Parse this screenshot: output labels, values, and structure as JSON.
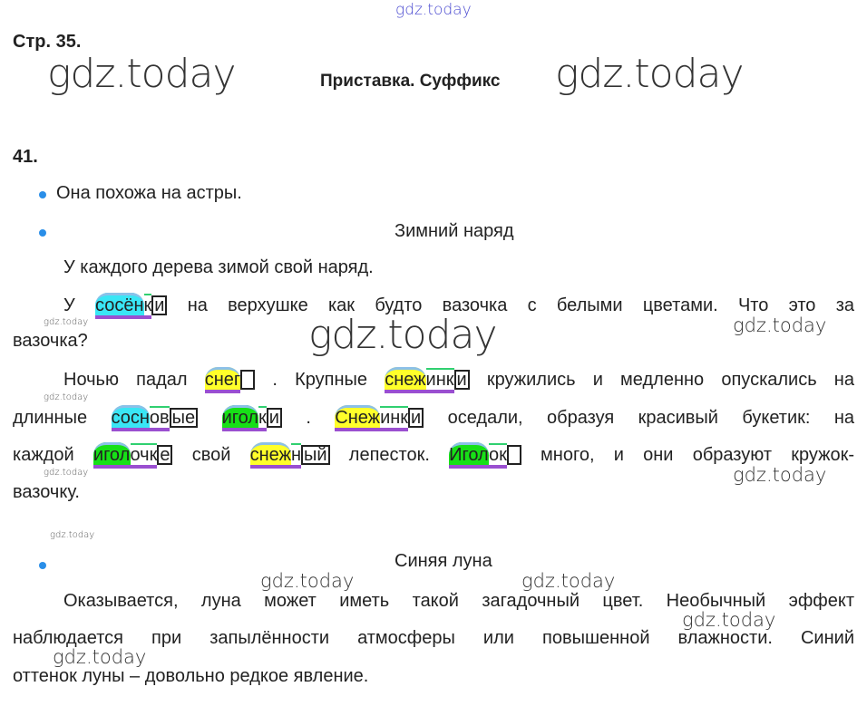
{
  "header": {
    "watermark_top": "gdz.today",
    "page": "Стр. 35.",
    "watermark_left": "gdz.today",
    "topic": "Приставка. Суффикс",
    "watermark_right": "gdz.today"
  },
  "exercise": {
    "number": "41.",
    "answer1": "Она похожа на астры."
  },
  "text1": {
    "title": "Зимний наряд",
    "lines": [
      [
        {
          "t": "У каждого дерева зимой свой наряд."
        }
      ],
      [
        {
          "t": "У "
        },
        {
          "w": [
            {
              "t": "сосён",
              "r": "root-cyan"
            },
            {
              "t": "к",
              "r": "suffix"
            },
            {
              "t": "и",
              "r": "ending"
            }
          ]
        },
        {
          "t": " на верхушке как будто вазочка с белыми цветами. Что это за"
        }
      ],
      [
        {
          "t": "вазочка?"
        }
      ],
      [
        {
          "t": "Ночью падал "
        },
        {
          "w": [
            {
              "t": "снег",
              "r": "root-yellow"
            },
            {
              "t": " ",
              "r": "ending"
            }
          ]
        },
        {
          "t": " . Крупные "
        },
        {
          "w": [
            {
              "t": "снеж",
              "r": "root-yellow"
            },
            {
              "t": "инк",
              "r": "suffix"
            },
            {
              "t": "и",
              "r": "ending"
            }
          ]
        },
        {
          "t": " кружились и медленно опускались на"
        }
      ],
      [
        {
          "t": "длинные "
        },
        {
          "w": [
            {
              "t": "сосн",
              "r": "root-cyan"
            },
            {
              "t": "ов",
              "r": "suffix"
            },
            {
              "t": "ые",
              "r": "ending"
            }
          ]
        },
        {
          "t": " "
        },
        {
          "w": [
            {
              "t": "игол",
              "r": "root-green"
            },
            {
              "t": "к",
              "r": "suffix"
            },
            {
              "t": "и",
              "r": "ending"
            }
          ]
        },
        {
          "t": " . "
        },
        {
          "w": [
            {
              "t": "Снеж",
              "r": "root-yellow"
            },
            {
              "t": "инк",
              "r": "suffix"
            },
            {
              "t": "и",
              "r": "ending"
            }
          ]
        },
        {
          "t": " оседали, образуя красивый букетик: на"
        }
      ],
      [
        {
          "t": "каждой "
        },
        {
          "w": [
            {
              "t": "игол",
              "r": "root-green"
            },
            {
              "t": "очк",
              "r": "suffix"
            },
            {
              "t": "е",
              "r": "ending"
            }
          ]
        },
        {
          "t": " свой "
        },
        {
          "w": [
            {
              "t": "снеж",
              "r": "root-yellow"
            },
            {
              "t": "н",
              "r": "suffix"
            },
            {
              "t": "ый",
              "r": "ending"
            }
          ]
        },
        {
          "t": " лепесток. "
        },
        {
          "w": [
            {
              "t": "Игол",
              "r": "root-green"
            },
            {
              "t": "ок",
              "r": "suffix"
            },
            {
              "t": " ",
              "r": "ending"
            }
          ]
        },
        {
          "t": " много, и они образуют кружок-"
        }
      ],
      [
        {
          "t": "вазочку."
        }
      ]
    ]
  },
  "text2": {
    "title": "Синяя луна",
    "lines": [
      "Оказывается, луна может иметь такой загадочный цвет. Необычный эффект",
      "наблюдается при запылённости атмосферы или повышенной влажности. Синий",
      "оттенок луны – довольно редкое явление."
    ]
  },
  "watermarks_small": [
    "gdz.today",
    "gdz.today",
    "gdz.today",
    "gdz.today"
  ],
  "watermarks_mid": [
    "gdz.today",
    "gdz.today",
    "gdz.today",
    "gdz.today",
    "gdz.today",
    "gdz.today",
    "gdz.today"
  ],
  "watermark_center": "gdz.today"
}
